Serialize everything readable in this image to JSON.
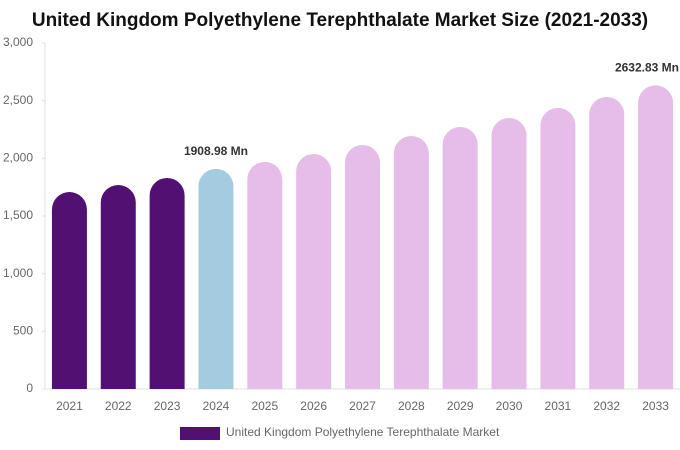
{
  "chart_data": {
    "type": "bar",
    "title": "United Kingdom Polyethylene Terephthalate Market Size (2021-2033)",
    "categories": [
      "2021",
      "2022",
      "2023",
      "2024",
      "2025",
      "2026",
      "2027",
      "2028",
      "2029",
      "2030",
      "2031",
      "2032",
      "2033"
    ],
    "series": [
      {
        "name": "United Kingdom Polyethylene Terephthalate Market",
        "color": "#521073",
        "values": [
          1708,
          1769,
          1830,
          1908.98,
          1969,
          2038,
          2116,
          2194,
          2272,
          2350,
          2437,
          2532,
          2632.83
        ],
        "value_labels": [
          null,
          null,
          null,
          "1908.98 Mn",
          null,
          null,
          null,
          null,
          null,
          null,
          null,
          null,
          "2632.83 Mn"
        ],
        "colors": [
          "#521073",
          "#521073",
          "#521073",
          "#a4cbe0",
          "#e6bde8",
          "#e6bde8",
          "#e6bde8",
          "#e6bde8",
          "#e6bde8",
          "#e6bde8",
          "#e6bde8",
          "#e6bde8",
          "#e6bde8"
        ]
      }
    ],
    "ylim": [
      0,
      3000
    ],
    "yticks": [
      0,
      {
        "value": 500,
        "label": "500"
      },
      {
        "value": 1000,
        "label": "1,000"
      },
      {
        "value": 1500,
        "label": "1,500"
      },
      {
        "value": 2000,
        "label": "2,000"
      },
      {
        "value": 2500,
        "label": "2,500"
      },
      {
        "value": 3000,
        "label": "3,000"
      }
    ],
    "legend": "bottom"
  }
}
